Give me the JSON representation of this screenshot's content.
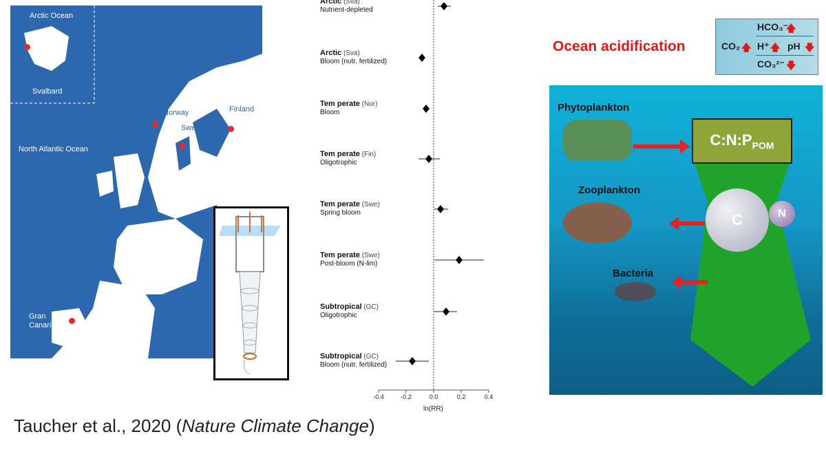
{
  "map": {
    "labels": {
      "arctic_ocean": "Arctic Ocean",
      "svalbard": "Svalbard",
      "norway": "Norway",
      "sweden": "Sweden",
      "finland": "Finland",
      "north_atlantic": "North Atlantic Ocean",
      "gran_canaria": "Gran\nCanaria"
    },
    "colors": {
      "sea": "#2d67ad",
      "land": "#ffffff",
      "site": "#e32b2b"
    }
  },
  "citation": {
    "text": "Taucher et al., 2020 (",
    "journal": "Nature Climate Change",
    "close": ")"
  },
  "chart_data": {
    "type": "forest",
    "xlabel": "ln(RR)",
    "xlim": [
      -0.4,
      0.4
    ],
    "xticks": [
      "-0.4",
      "-0.2",
      "0.0",
      "0.2",
      "0.4"
    ],
    "reference_line": 0,
    "rows": [
      {
        "region": "Arctic",
        "site": "(Sva)",
        "condition": "Nutrient-depleted",
        "estimate": 0.075,
        "ci": [
          0.03,
          0.125
        ]
      },
      {
        "region": "Arctic",
        "site": "(Sva)",
        "condition": "Bloom (nutr. fertilized)",
        "estimate": -0.085,
        "ci": [
          -0.085,
          -0.085
        ]
      },
      {
        "region": "Tem perate",
        "site": "(Nor)",
        "condition": "Bloom",
        "estimate": -0.055,
        "ci": [
          -0.055,
          -0.055
        ]
      },
      {
        "region": "Tem perate",
        "site": "(Fin)",
        "condition": "Oligotrophic",
        "estimate": -0.035,
        "ci": [
          -0.11,
          0.045
        ]
      },
      {
        "region": "Tem perate",
        "site": "(Swe)",
        "condition": "Spring bloom",
        "estimate": 0.05,
        "ci": [
          0.005,
          0.105
        ]
      },
      {
        "region": "Tem perate",
        "site": "(Swe)",
        "condition": "Post-bloom (N-lim)",
        "estimate": 0.185,
        "ci": [
          0.005,
          0.365
        ]
      },
      {
        "region": "Subtropical",
        "site": "(GC)",
        "condition": "Oligotrophic",
        "estimate": 0.09,
        "ci": [
          0.005,
          0.17
        ]
      },
      {
        "region": "Subtropical",
        "site": "(GC)",
        "condition": "Bloom (nutr. fertilized)",
        "estimate": -0.155,
        "ci": [
          -0.275,
          -0.035
        ]
      }
    ]
  },
  "diagram": {
    "title": "Ocean acidification",
    "chem": {
      "co2": "CO₂",
      "hco3": "HCO₃⁻",
      "h": "H⁺",
      "ph": "pH",
      "co3": "CO₃²⁻",
      "up": "🡅",
      "down": "🡇"
    },
    "labels": {
      "phyto": "Phytoplankton",
      "zoo": "Zooplankton",
      "bacteria": "Bacteria",
      "ratio": "C:N:P",
      "ratio_sub": "POM",
      "c": "C",
      "n": "N"
    },
    "colors": {
      "title": "#e01818",
      "arrow": "#e42222",
      "cone": "#1fa32a",
      "box": "#8fa53a"
    }
  }
}
